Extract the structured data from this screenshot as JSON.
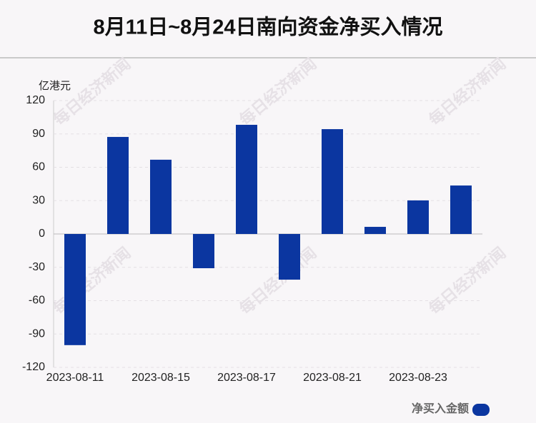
{
  "chart_data": {
    "type": "bar",
    "title": "8月11日~8月24日南向资金净买入情况",
    "y_label": "亿港元",
    "watermark": "每日经济新闻",
    "categories": [
      "2023-08-11",
      null,
      "2023-08-15",
      null,
      "2023-08-17",
      null,
      "2023-08-21",
      null,
      "2023-08-23",
      null
    ],
    "series": [
      {
        "name": "净买入金额",
        "color": "#0b36a0",
        "values": [
          -100,
          87.3,
          66.8,
          -30.8,
          98.2,
          -41.1,
          94.3,
          6.4,
          30.2,
          43.6
        ]
      }
    ],
    "ylim": [
      -120,
      120
    ],
    "yticks": [
      -120,
      -90,
      -60,
      -30,
      0,
      30,
      60,
      90,
      120
    ],
    "grid": true,
    "legend": "bottom-right"
  }
}
